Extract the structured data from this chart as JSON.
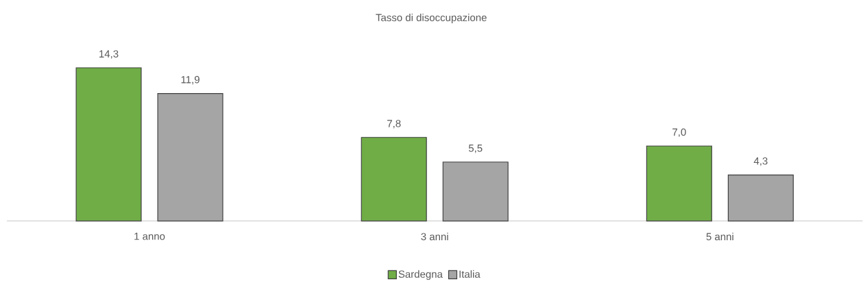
{
  "chart_data": {
    "type": "bar",
    "title": "Tasso di disoccupazione",
    "categories": [
      "1 anno",
      "3 anni",
      "5 anni"
    ],
    "series": [
      {
        "name": "Sardegna",
        "color": "#70ad47",
        "values": [
          14.3,
          7.8,
          7.0
        ],
        "value_labels": [
          "14,3",
          "7,8",
          "7,0"
        ]
      },
      {
        "name": "Italia",
        "color": "#a5a5a5",
        "values": [
          11.9,
          5.5,
          4.3
        ],
        "value_labels": [
          "11,9",
          "5,5",
          "4,3"
        ]
      }
    ],
    "legend": "bottom"
  }
}
